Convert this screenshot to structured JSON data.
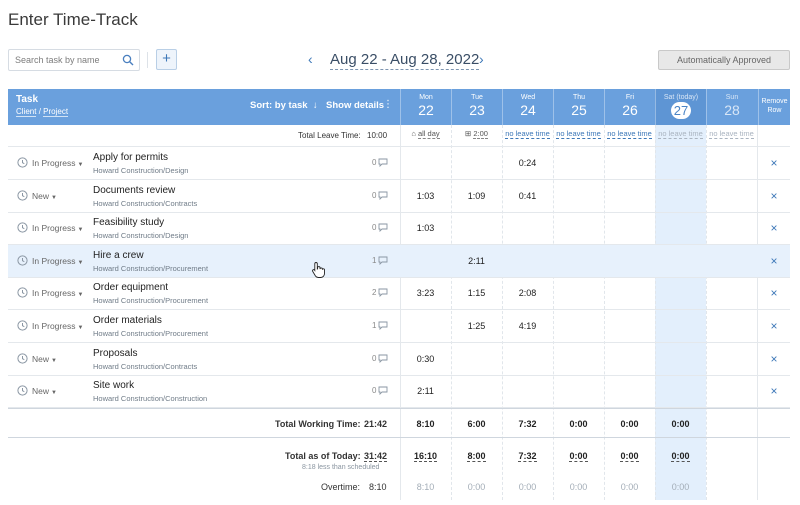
{
  "page": {
    "title": "Enter Time-Track"
  },
  "search": {
    "placeholder": "Search task by name"
  },
  "date_range": "Aug 22 - Aug 28, 2022",
  "approval_status": "Automatically Approved",
  "header": {
    "task": "Task",
    "client": "Client",
    "separator": "/",
    "project": "Project",
    "sort": "Sort: by task",
    "show_details": "Show details",
    "remove_row_line1": "Remove",
    "remove_row_line2": "Row",
    "days": [
      {
        "name": "Mon",
        "date": "22"
      },
      {
        "name": "Tue",
        "date": "23"
      },
      {
        "name": "Wed",
        "date": "24"
      },
      {
        "name": "Thu",
        "date": "25"
      },
      {
        "name": "Fri",
        "date": "26"
      },
      {
        "name": "Sat (today)",
        "date": "27"
      },
      {
        "name": "Sun",
        "date": "28"
      }
    ]
  },
  "leave": {
    "label": "Total Leave Time:",
    "total": "10:00",
    "cells": [
      "all day",
      "2:00",
      "no leave time",
      "no leave time",
      "no leave time",
      "no leave time",
      "no leave time"
    ]
  },
  "tasks": [
    {
      "status": "In Progress",
      "name": "Apply for permits",
      "client": "Howard Construction",
      "project": "Design",
      "comments": "0",
      "times": [
        "",
        "",
        "0:24",
        "",
        "",
        "",
        ""
      ]
    },
    {
      "status": "New",
      "name": "Documents review",
      "client": "Howard Construction",
      "project": "Contracts",
      "comments": "0",
      "times": [
        "1:03",
        "1:09",
        "0:41",
        "",
        "",
        "",
        ""
      ]
    },
    {
      "status": "In Progress",
      "name": "Feasibility study",
      "client": "Howard Construction",
      "project": "Design",
      "comments": "0",
      "times": [
        "1:03",
        "",
        "",
        "",
        "",
        "",
        ""
      ]
    },
    {
      "status": "In Progress",
      "name": "Hire a crew",
      "client": "Howard Construction",
      "project": "Procurement",
      "comments": "1",
      "times": [
        "",
        "2:11",
        "",
        "",
        "",
        "",
        ""
      ]
    },
    {
      "status": "In Progress",
      "name": "Order equipment",
      "client": "Howard Construction",
      "project": "Procurement",
      "comments": "2",
      "times": [
        "3:23",
        "1:15",
        "2:08",
        "",
        "",
        "",
        ""
      ]
    },
    {
      "status": "In Progress",
      "name": "Order materials",
      "client": "Howard Construction",
      "project": "Procurement",
      "comments": "1",
      "times": [
        "",
        "1:25",
        "4:19",
        "",
        "",
        "",
        ""
      ]
    },
    {
      "status": "New",
      "name": "Proposals",
      "client": "Howard Construction",
      "project": "Contracts",
      "comments": "0",
      "times": [
        "0:30",
        "",
        "",
        "",
        "",
        "",
        ""
      ]
    },
    {
      "status": "New",
      "name": "Site work",
      "client": "Howard Construction",
      "project": "Construction",
      "comments": "0",
      "times": [
        "2:11",
        "",
        "",
        "",
        "",
        "",
        ""
      ]
    }
  ],
  "totals": {
    "working_label": "Total Working Time:",
    "working_total": "21:42",
    "working": [
      "8:10",
      "6:00",
      "7:32",
      "0:00",
      "0:00",
      "0:00",
      ""
    ],
    "asof_label": "Total as of Today:",
    "asof_total": "31:42",
    "asof_note": "8:18 less than scheduled",
    "asof": [
      "16:10",
      "8:00",
      "7:32",
      "0:00",
      "0:00",
      "0:00",
      ""
    ],
    "overtime_label": "Overtime:",
    "overtime_total": "8:10",
    "overtime": [
      "8:10",
      "0:00",
      "0:00",
      "0:00",
      "0:00",
      "0:00",
      ""
    ]
  },
  "remove_symbol": "×",
  "colors": {
    "header": "#6aa0dd",
    "accent": "#3d78b8",
    "today_column": "#e3effc",
    "highlight_row": "#e7f1fc"
  }
}
